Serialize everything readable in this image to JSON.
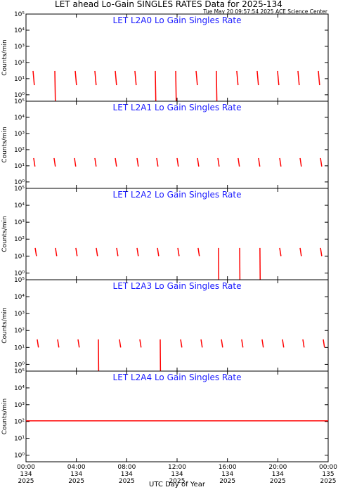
{
  "title": "LET ahead Lo-Gain SINGLES RATES Data for 2025-134",
  "timestamp": "Tue May 20 09:57:54 2025 ACE Science Center",
  "xlabel": "UTC Day of Year",
  "chart_data": [
    {
      "type": "line",
      "title": "LET L2A0 Lo Gain Singles Rate",
      "ylabel": "Counts/min",
      "log_y": true,
      "xlim": [
        0,
        24
      ],
      "ylim": [
        0.4,
        100000
      ],
      "yticks": [
        {
          "value": 1,
          "label": "10⁰"
        },
        {
          "value": 10,
          "label": "10¹"
        },
        {
          "value": 100,
          "label": "10²"
        },
        {
          "value": 1000,
          "label": "10³"
        },
        {
          "value": 10000,
          "label": "10⁴"
        },
        {
          "value": 100000,
          "label": "10⁵"
        }
      ],
      "xticks": [
        0,
        4,
        8,
        12,
        16,
        20,
        24
      ],
      "series": [
        {
          "color": "#ff0000",
          "x": [
            0.56,
            0.66,
            0.66,
            2.29,
            2.33,
            2.33,
            3.91,
            4.01,
            4.01,
            5.47,
            5.57,
            5.57,
            7.09,
            7.19,
            7.19,
            8.65,
            8.75,
            8.75,
            10.27,
            10.31,
            10.31,
            11.89,
            11.93,
            11.93,
            13.51,
            13.61,
            13.61,
            15.12,
            15.16,
            15.16,
            16.74,
            16.84,
            16.84,
            18.36,
            18.46,
            18.46,
            19.98,
            20.08,
            20.08,
            21.6,
            21.7,
            21.7,
            23.22,
            23.32
          ],
          "values": [
            30,
            4,
            null,
            30,
            0.4,
            null,
            30,
            4,
            null,
            30,
            4,
            null,
            30,
            4,
            null,
            30,
            4,
            null,
            30,
            0.4,
            null,
            30,
            0.4,
            null,
            30,
            4,
            null,
            30,
            0.4,
            null,
            30,
            4,
            null,
            30,
            4,
            null,
            30,
            4,
            null,
            30,
            4,
            null,
            30,
            4
          ]
        }
      ]
    },
    {
      "type": "line",
      "title": "LET L2A1 Lo Gain Singles Rate",
      "ylabel": "Counts/min",
      "log_y": true,
      "xlim": [
        0,
        24
      ],
      "ylim": [
        0.4,
        100000
      ],
      "yticks": [
        {
          "value": 1,
          "label": "10⁰"
        },
        {
          "value": 10,
          "label": "10¹"
        },
        {
          "value": 100,
          "label": "10²"
        },
        {
          "value": 1000,
          "label": "10³"
        },
        {
          "value": 10000,
          "label": "10⁴"
        },
        {
          "value": 100000,
          "label": "10⁵"
        }
      ],
      "xticks": [
        0,
        4,
        8,
        12,
        16,
        20,
        24
      ],
      "series": [
        {
          "color": "#ff0000",
          "x": [
            0.61,
            0.71,
            0.71,
            2.23,
            2.33,
            2.33,
            3.85,
            3.95,
            3.95,
            5.47,
            5.57,
            5.57,
            7.09,
            7.19,
            7.19,
            8.82,
            8.92,
            8.92,
            10.38,
            10.48,
            10.48,
            12.0,
            12.1,
            12.1,
            13.62,
            13.72,
            13.72,
            15.24,
            15.34,
            15.34,
            16.85,
            16.95,
            16.95,
            18.47,
            18.57,
            18.57,
            20.15,
            20.25,
            20.25,
            21.77,
            21.87,
            21.87,
            23.39,
            23.49
          ],
          "values": [
            30,
            9,
            null,
            30,
            9,
            null,
            30,
            9,
            null,
            30,
            9,
            null,
            30,
            9,
            null,
            30,
            9,
            null,
            30,
            9,
            null,
            30,
            9,
            null,
            30,
            9,
            null,
            30,
            9,
            null,
            30,
            9,
            null,
            30,
            9,
            null,
            30,
            9,
            null,
            30,
            9,
            null,
            30,
            9
          ]
        }
      ]
    },
    {
      "type": "line",
      "title": "LET L2A2 Lo Gain Singles Rate",
      "ylabel": "Counts/min",
      "log_y": true,
      "xlim": [
        0,
        24
      ],
      "ylim": [
        0.4,
        100000
      ],
      "yticks": [
        {
          "value": 1,
          "label": "10⁰"
        },
        {
          "value": 10,
          "label": "10¹"
        },
        {
          "value": 100,
          "label": "10²"
        },
        {
          "value": 1000,
          "label": "10³"
        },
        {
          "value": 10000,
          "label": "10⁴"
        },
        {
          "value": 100000,
          "label": "10⁵"
        }
      ],
      "xticks": [
        0,
        4,
        8,
        12,
        16,
        20,
        24
      ],
      "series": [
        {
          "color": "#ff0000",
          "x": [
            0.73,
            0.83,
            0.83,
            2.34,
            2.44,
            2.44,
            3.96,
            4.06,
            4.06,
            5.58,
            5.68,
            5.68,
            7.2,
            7.3,
            7.3,
            8.82,
            8.92,
            8.92,
            10.44,
            10.54,
            10.54,
            12.06,
            12.16,
            12.16,
            13.67,
            13.77,
            13.77,
            15.29,
            15.31,
            15.31,
            16.97,
            16.99,
            16.99,
            18.58,
            18.6,
            18.6,
            20.15,
            20.25,
            20.25,
            21.77,
            21.87,
            21.87,
            23.39,
            23.49
          ],
          "values": [
            30,
            10,
            null,
            30,
            10,
            null,
            30,
            10,
            null,
            30,
            10,
            null,
            30,
            10,
            null,
            30,
            10,
            null,
            30,
            10,
            null,
            30,
            10,
            null,
            30,
            10,
            null,
            30,
            0.4,
            null,
            30,
            0.4,
            null,
            30,
            0.4,
            null,
            30,
            10,
            null,
            30,
            10,
            null,
            30,
            10
          ]
        }
      ]
    },
    {
      "type": "line",
      "title": "LET L2A3 Lo Gain Singles Rate",
      "ylabel": "Counts/min",
      "log_y": true,
      "xlim": [
        0,
        24
      ],
      "ylim": [
        0.4,
        100000
      ],
      "yticks": [
        {
          "value": 1,
          "label": "10⁰"
        },
        {
          "value": 10,
          "label": "10¹"
        },
        {
          "value": 100,
          "label": "10²"
        },
        {
          "value": 1000,
          "label": "10³"
        },
        {
          "value": 10000,
          "label": "10⁴"
        },
        {
          "value": 100000,
          "label": "10⁵"
        }
      ],
      "xticks": [
        0,
        4,
        8,
        12,
        16,
        20,
        24
      ],
      "series": [
        {
          "color": "#ff0000",
          "x": [
            0.89,
            0.99,
            0.99,
            2.51,
            2.61,
            2.61,
            4.13,
            4.23,
            4.23,
            5.75,
            5.77,
            5.77,
            7.42,
            7.52,
            7.52,
            9.04,
            9.14,
            9.14,
            10.66,
            10.68,
            10.68,
            12.28,
            12.38,
            12.38,
            13.9,
            14.0,
            14.0,
            15.52,
            15.62,
            15.62,
            17.13,
            17.23,
            17.23,
            18.75,
            18.85,
            18.85,
            20.37,
            20.47,
            20.47,
            21.99,
            22.09,
            22.09,
            23.61,
            23.71
          ],
          "values": [
            30,
            10,
            null,
            30,
            10,
            null,
            30,
            10,
            null,
            30,
            0.4,
            null,
            30,
            10,
            null,
            30,
            10,
            null,
            30,
            0.4,
            null,
            30,
            10,
            null,
            30,
            10,
            null,
            30,
            10,
            null,
            30,
            10,
            null,
            30,
            10,
            null,
            30,
            10,
            null,
            30,
            10,
            null,
            30,
            10
          ]
        }
      ]
    },
    {
      "type": "line",
      "title": "LET L2A4 Lo Gain Singles Rate",
      "ylabel": "Counts/min",
      "log_y": true,
      "xlim": [
        0,
        24
      ],
      "ylim": [
        0.4,
        100000
      ],
      "yticks": [
        {
          "value": 1,
          "label": "10⁰"
        },
        {
          "value": 10,
          "label": "10¹"
        },
        {
          "value": 100,
          "label": "10²"
        },
        {
          "value": 1000,
          "label": "10³"
        },
        {
          "value": 10000,
          "label": "10⁴"
        },
        {
          "value": 100000,
          "label": "10⁵"
        }
      ],
      "xticks": [
        {
          "value": 0,
          "label": "00:00 134 2025"
        },
        {
          "value": 4,
          "label": "04:00 134 2025"
        },
        {
          "value": 8,
          "label": "08:00 134 2025"
        },
        {
          "value": 12,
          "label": "12:00 134 2025"
        },
        {
          "value": 16,
          "label": "16:00 134 2025"
        },
        {
          "value": 20,
          "label": "20:00 134 2025"
        },
        {
          "value": 24,
          "label": "00:00 135 2025"
        }
      ],
      "series": [
        {
          "color": "#ff0000",
          "x": [
            0,
            24
          ],
          "values": [
            110,
            110
          ]
        }
      ]
    }
  ]
}
